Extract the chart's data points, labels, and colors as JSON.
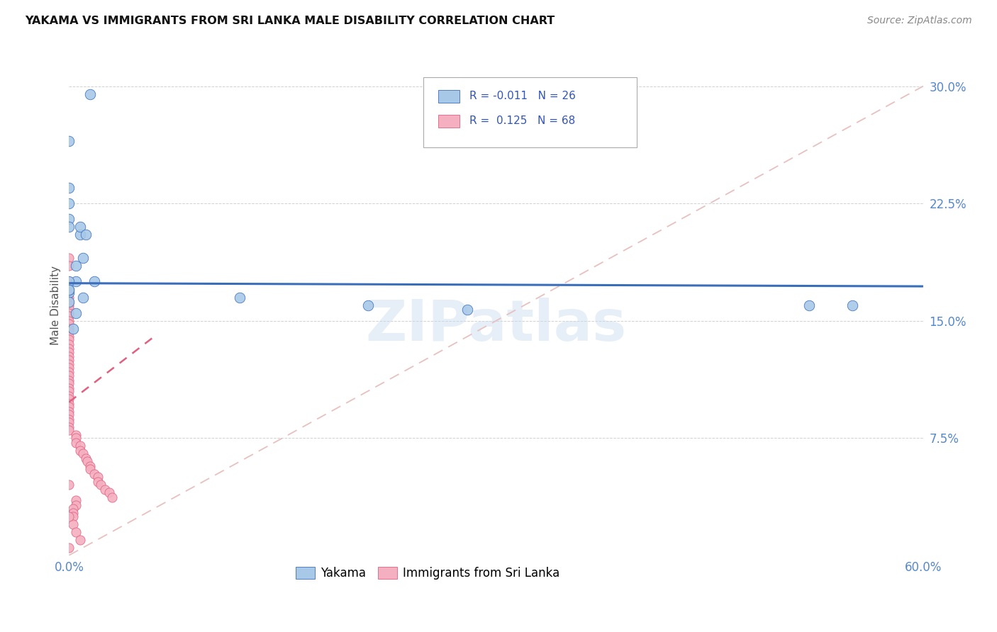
{
  "title": "YAKAMA VS IMMIGRANTS FROM SRI LANKA MALE DISABILITY CORRELATION CHART",
  "source": "Source: ZipAtlas.com",
  "ylabel": "Male Disability",
  "xlim": [
    0.0,
    0.6
  ],
  "ylim": [
    0.0,
    0.32
  ],
  "blue_color": "#A8C8E8",
  "pink_color": "#F4B0C0",
  "blue_line_color": "#3A6EBB",
  "pink_line_color": "#E06080",
  "diagonal_color": "#E8C0C0",
  "watermark": "ZIPatlas",
  "yakama_x": [
    0.015,
    0.0,
    0.0,
    0.0,
    0.0,
    0.0,
    0.008,
    0.008,
    0.012,
    0.01,
    0.005,
    0.005,
    0.01,
    0.018,
    0.005,
    0.003,
    0.12,
    0.21,
    0.28,
    0.52,
    0.55,
    0.0,
    0.0,
    0.0,
    0.0,
    0.0
  ],
  "yakama_y": [
    0.295,
    0.265,
    0.235,
    0.225,
    0.215,
    0.21,
    0.205,
    0.21,
    0.205,
    0.19,
    0.185,
    0.175,
    0.165,
    0.175,
    0.155,
    0.145,
    0.165,
    0.16,
    0.157,
    0.16,
    0.16,
    0.175,
    0.168,
    0.162,
    0.17,
    0.17
  ],
  "srilanka_x": [
    0.0,
    0.0,
    0.0,
    0.0,
    0.0,
    0.0,
    0.0,
    0.0,
    0.0,
    0.0,
    0.0,
    0.0,
    0.0,
    0.0,
    0.0,
    0.0,
    0.0,
    0.0,
    0.0,
    0.0,
    0.0,
    0.0,
    0.0,
    0.0,
    0.0,
    0.0,
    0.0,
    0.0,
    0.0,
    0.0,
    0.0,
    0.0,
    0.0,
    0.0,
    0.0,
    0.0,
    0.0,
    0.0,
    0.0,
    0.0,
    0.005,
    0.005,
    0.005,
    0.008,
    0.008,
    0.01,
    0.012,
    0.013,
    0.015,
    0.015,
    0.018,
    0.02,
    0.02,
    0.022,
    0.025,
    0.028,
    0.03,
    0.005,
    0.005,
    0.003,
    0.003,
    0.003,
    0.003,
    0.005,
    0.008,
    0.0,
    0.0,
    0.0
  ],
  "srilanka_y": [
    0.19,
    0.185,
    0.175,
    0.17,
    0.168,
    0.165,
    0.162,
    0.16,
    0.158,
    0.155,
    0.153,
    0.15,
    0.148,
    0.145,
    0.143,
    0.14,
    0.138,
    0.135,
    0.132,
    0.13,
    0.127,
    0.125,
    0.122,
    0.12,
    0.117,
    0.115,
    0.112,
    0.11,
    0.107,
    0.105,
    0.102,
    0.1,
    0.097,
    0.095,
    0.092,
    0.09,
    0.087,
    0.085,
    0.082,
    0.08,
    0.077,
    0.075,
    0.072,
    0.07,
    0.067,
    0.065,
    0.062,
    0.06,
    0.057,
    0.055,
    0.052,
    0.05,
    0.047,
    0.045,
    0.042,
    0.04,
    0.037,
    0.035,
    0.032,
    0.03,
    0.027,
    0.025,
    0.02,
    0.015,
    0.01,
    0.005,
    0.025,
    0.045
  ],
  "blue_trend_y0": 0.174,
  "blue_trend_y1": 0.172,
  "pink_trend_x0": 0.0,
  "pink_trend_y0": 0.098,
  "pink_trend_x1": 0.06,
  "pink_trend_y1": 0.14
}
